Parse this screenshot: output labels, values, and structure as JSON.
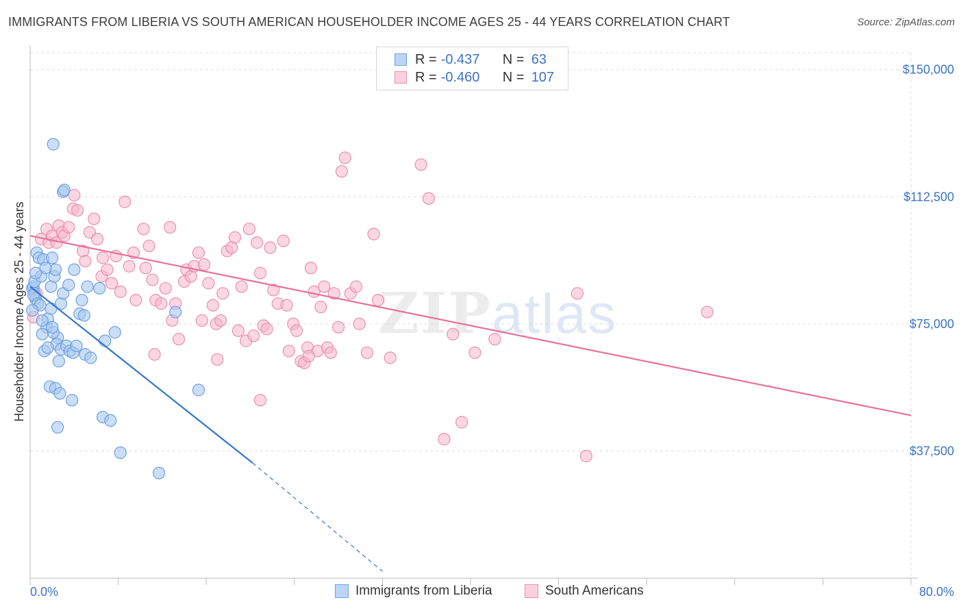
{
  "title": "IMMIGRANTS FROM LIBERIA VS SOUTH AMERICAN HOUSEHOLDER INCOME AGES 25 - 44 YEARS CORRELATION CHART",
  "source": "Source: ZipAtlas.com",
  "watermark": {
    "zip": "ZIP",
    "atlas": "atlas"
  },
  "legend": {
    "rows": [
      {
        "r_label": "R =",
        "r_value": "-0.437",
        "n_label": "N =",
        "n_value": "63"
      },
      {
        "r_label": "R =",
        "r_value": "-0.460",
        "n_label": "N =",
        "n_value": "107"
      }
    ]
  },
  "bottom_legend": [
    "Immigrants from Liberia",
    "South Americans"
  ],
  "colors": {
    "blue_fill": "#a8c8f0",
    "blue_stroke": "#6ea0de",
    "blue_line": "#2f74d0",
    "pink_fill": "#f7b7cc",
    "pink_stroke": "#ea8fb0",
    "pink_line": "#e8709a",
    "tick_text": "#3b73c5",
    "grid": "#dddddd"
  },
  "chart_data": {
    "type": "scatter",
    "title": "IMMIGRANTS FROM LIBERIA VS SOUTH AMERICAN HOUSEHOLDER INCOME AGES 25 - 44 YEARS CORRELATION CHART",
    "xlabel": "",
    "ylabel": "Householder Income Ages 25 - 44 years",
    "xlim": [
      0,
      80
    ],
    "ylim": [
      0,
      155000
    ],
    "x_tick_labels": [
      "0.0%",
      "80.0%"
    ],
    "y_ticks": [
      37500,
      75000,
      112500,
      150000
    ],
    "y_tick_labels": [
      "$37,500",
      "$75,000",
      "$112,500",
      "$150,000"
    ],
    "grid": true,
    "series": [
      {
        "name": "Immigrants from Liberia",
        "r": -0.437,
        "n": 63,
        "trend": {
          "x0": 0,
          "y0": 86000,
          "x1": 20.2,
          "y1": 34000,
          "dash_to_x": 32,
          "dash_to_y": 2000
        },
        "points": [
          [
            0.2,
            85500
          ],
          [
            0.3,
            86000
          ],
          [
            0.4,
            84000
          ],
          [
            0.5,
            82500
          ],
          [
            0.4,
            87500
          ],
          [
            0.3,
            83500
          ],
          [
            0.6,
            96000
          ],
          [
            0.8,
            94500
          ],
          [
            1.0,
            89000
          ],
          [
            1.2,
            94000
          ],
          [
            0.7,
            81000
          ],
          [
            1.5,
            74000
          ],
          [
            1.6,
            76500
          ],
          [
            1.9,
            86000
          ],
          [
            2.0,
            94500
          ],
          [
            2.2,
            89000
          ],
          [
            1.9,
            79500
          ],
          [
            2.3,
            91000
          ],
          [
            2.8,
            81000
          ],
          [
            2.5,
            71000
          ],
          [
            3.0,
            84000
          ],
          [
            3.5,
            86500
          ],
          [
            2.1,
            72500
          ],
          [
            2.4,
            69000
          ],
          [
            2.8,
            67500
          ],
          [
            3.3,
            68500
          ],
          [
            1.3,
            67000
          ],
          [
            1.6,
            68000
          ],
          [
            2.6,
            64000
          ],
          [
            3.6,
            67000
          ],
          [
            3.9,
            66500
          ],
          [
            4.5,
            78000
          ],
          [
            4.7,
            82000
          ],
          [
            4.9,
            77500
          ],
          [
            4.0,
            91000
          ],
          [
            5.2,
            86000
          ],
          [
            5.0,
            66000
          ],
          [
            5.5,
            65000
          ],
          [
            6.3,
            85500
          ],
          [
            2.1,
            128000
          ],
          [
            3.0,
            114000
          ],
          [
            3.1,
            114500
          ],
          [
            6.8,
            70000
          ],
          [
            7.7,
            72500
          ],
          [
            1.8,
            56500
          ],
          [
            2.3,
            56000
          ],
          [
            2.7,
            54500
          ],
          [
            3.8,
            52500
          ],
          [
            6.6,
            47500
          ],
          [
            7.3,
            46500
          ],
          [
            2.5,
            44500
          ],
          [
            8.2,
            37000
          ],
          [
            11.7,
            31000
          ],
          [
            13.2,
            78500
          ],
          [
            15.3,
            55500
          ],
          [
            0.9,
            80500
          ],
          [
            1.1,
            76000
          ],
          [
            0.2,
            79000
          ],
          [
            1.4,
            91500
          ],
          [
            2.0,
            74000
          ],
          [
            4.2,
            68500
          ],
          [
            0.5,
            90000
          ],
          [
            1.1,
            72000
          ]
        ]
      },
      {
        "name": "South Americans",
        "r": -0.46,
        "n": 107,
        "trend": {
          "x0": 0,
          "y0": 101000,
          "x1": 80,
          "y1": 48000
        },
        "points": [
          [
            0.3,
            77000
          ],
          [
            0.6,
            84000
          ],
          [
            1.0,
            100000
          ],
          [
            1.5,
            103000
          ],
          [
            1.7,
            99000
          ],
          [
            2.0,
            101000
          ],
          [
            2.4,
            99000
          ],
          [
            2.6,
            104000
          ],
          [
            2.9,
            102000
          ],
          [
            3.1,
            101000
          ],
          [
            3.5,
            103500
          ],
          [
            3.9,
            109000
          ],
          [
            4.0,
            113000
          ],
          [
            4.3,
            108500
          ],
          [
            4.8,
            96500
          ],
          [
            5.0,
            93500
          ],
          [
            5.4,
            102000
          ],
          [
            5.8,
            106000
          ],
          [
            6.1,
            100000
          ],
          [
            6.5,
            89000
          ],
          [
            6.6,
            94500
          ],
          [
            7.0,
            91000
          ],
          [
            7.4,
            87000
          ],
          [
            7.8,
            95000
          ],
          [
            8.2,
            84500
          ],
          [
            8.6,
            111000
          ],
          [
            9.0,
            92000
          ],
          [
            9.4,
            96000
          ],
          [
            9.6,
            82000
          ],
          [
            10.3,
            103000
          ],
          [
            10.5,
            91500
          ],
          [
            10.8,
            98000
          ],
          [
            11.1,
            88000
          ],
          [
            11.4,
            82000
          ],
          [
            11.9,
            81000
          ],
          [
            12.3,
            85500
          ],
          [
            12.7,
            103500
          ],
          [
            12.9,
            76000
          ],
          [
            13.2,
            81000
          ],
          [
            13.5,
            70500
          ],
          [
            14.0,
            87500
          ],
          [
            14.2,
            91000
          ],
          [
            14.6,
            89000
          ],
          [
            14.9,
            92000
          ],
          [
            15.3,
            96000
          ],
          [
            15.6,
            76000
          ],
          [
            15.8,
            92500
          ],
          [
            16.2,
            87000
          ],
          [
            16.6,
            80500
          ],
          [
            16.9,
            75000
          ],
          [
            17.3,
            76000
          ],
          [
            17.5,
            84000
          ],
          [
            17.9,
            96500
          ],
          [
            18.3,
            97500
          ],
          [
            18.6,
            100500
          ],
          [
            18.9,
            73000
          ],
          [
            19.2,
            86000
          ],
          [
            19.6,
            70000
          ],
          [
            19.9,
            103000
          ],
          [
            20.3,
            71500
          ],
          [
            20.6,
            99000
          ],
          [
            20.9,
            90000
          ],
          [
            21.2,
            74500
          ],
          [
            21.5,
            73500
          ],
          [
            21.8,
            97500
          ],
          [
            22.1,
            85000
          ],
          [
            22.5,
            81000
          ],
          [
            23.0,
            99500
          ],
          [
            23.3,
            80500
          ],
          [
            23.5,
            67000
          ],
          [
            23.9,
            75000
          ],
          [
            24.2,
            73000
          ],
          [
            24.6,
            64000
          ],
          [
            24.9,
            63500
          ],
          [
            25.2,
            68000
          ],
          [
            25.5,
            91500
          ],
          [
            25.8,
            84500
          ],
          [
            26.1,
            67000
          ],
          [
            26.4,
            80000
          ],
          [
            26.7,
            86000
          ],
          [
            27.0,
            68000
          ],
          [
            27.3,
            66500
          ],
          [
            27.6,
            84000
          ],
          [
            28.0,
            74000
          ],
          [
            28.3,
            120000
          ],
          [
            28.6,
            124000
          ],
          [
            29.1,
            84000
          ],
          [
            29.6,
            86000
          ],
          [
            29.9,
            75000
          ],
          [
            30.6,
            66500
          ],
          [
            31.2,
            101500
          ],
          [
            31.6,
            82000
          ],
          [
            35.5,
            122000
          ],
          [
            36.2,
            112000
          ],
          [
            37.6,
            41000
          ],
          [
            38.4,
            72000
          ],
          [
            39.2,
            46000
          ],
          [
            40.4,
            66500
          ],
          [
            42.2,
            70500
          ],
          [
            49.7,
            84000
          ],
          [
            50.5,
            36000
          ],
          [
            61.5,
            78500
          ],
          [
            11.3,
            66000
          ],
          [
            20.9,
            52500
          ],
          [
            17.0,
            64500
          ],
          [
            25.3,
            65500
          ],
          [
            32.7,
            65000
          ]
        ]
      }
    ]
  }
}
